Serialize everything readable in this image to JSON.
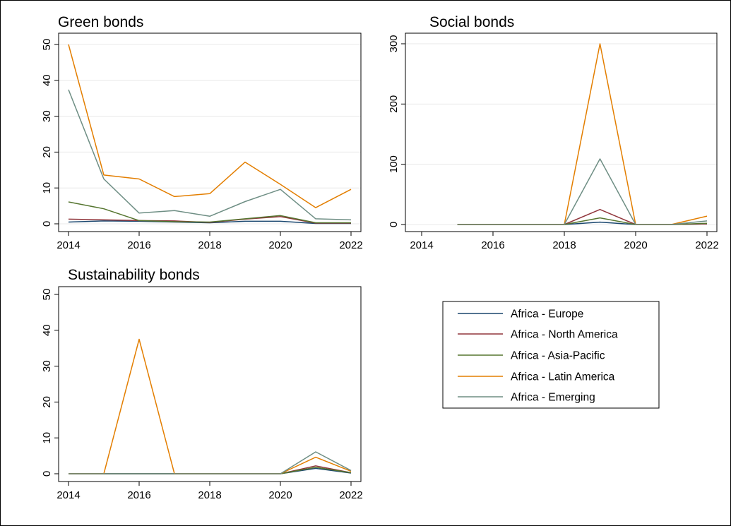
{
  "chart_data": [
    {
      "type": "line",
      "title": "Green bonds",
      "xlabel": "",
      "ylabel": "",
      "x": [
        2014,
        2015,
        2016,
        2017,
        2018,
        2019,
        2020,
        2021,
        2022
      ],
      "xticks": [
        "2014",
        "2016",
        "2018",
        "2020",
        "2022"
      ],
      "yticks": [
        "0",
        "10",
        "20",
        "30",
        "40",
        "50"
      ],
      "xlim": [
        2014,
        2022
      ],
      "ylim": [
        0,
        50
      ],
      "grid": true,
      "series": [
        {
          "name": "Africa - Europe",
          "values": [
            0.5,
            0.8,
            0.7,
            0.5,
            0.3,
            0.7,
            0.7,
            0.1,
            0.1
          ]
        },
        {
          "name": "Africa - North America",
          "values": [
            1.3,
            1.1,
            0.9,
            0.8,
            0.4,
            1.3,
            2.0,
            0.2,
            0.2
          ]
        },
        {
          "name": "Africa - Asia-Pacific",
          "values": [
            6.1,
            4.2,
            0.9,
            0.6,
            0.5,
            1.4,
            2.3,
            0.3,
            0.3
          ]
        },
        {
          "name": "Africa - Latin America",
          "values": [
            50,
            13.6,
            12.5,
            7.6,
            8.4,
            17.2,
            11.0,
            4.5,
            9.6
          ]
        },
        {
          "name": "Africa - Emerging",
          "values": [
            37.4,
            12.5,
            3.0,
            3.7,
            2.1,
            6.2,
            9.6,
            1.4,
            1.1
          ]
        }
      ]
    },
    {
      "type": "line",
      "title": "Social bonds",
      "xlabel": "",
      "ylabel": "",
      "x": [
        2015,
        2016,
        2017,
        2018,
        2019,
        2020,
        2021,
        2022
      ],
      "xticks": [
        "2014",
        "2016",
        "2018",
        "2020",
        "2022"
      ],
      "yticks": [
        "0",
        "100",
        "200",
        "300"
      ],
      "xlim": [
        2014,
        2022
      ],
      "ylim": [
        0,
        300
      ],
      "grid": true,
      "series": [
        {
          "name": "Africa - Europe",
          "values": [
            0,
            0,
            0,
            0,
            4,
            0,
            0,
            1
          ]
        },
        {
          "name": "Africa - North America",
          "values": [
            0,
            0,
            0,
            0,
            25,
            0,
            0,
            1
          ]
        },
        {
          "name": "Africa - Asia-Pacific",
          "values": [
            0,
            0,
            0,
            0,
            11,
            0,
            0,
            2
          ]
        },
        {
          "name": "Africa - Latin America",
          "values": [
            0,
            0,
            0,
            0,
            300,
            0,
            0,
            14
          ]
        },
        {
          "name": "Africa - Emerging",
          "values": [
            0,
            0,
            0,
            0,
            109,
            0,
            0,
            6
          ]
        }
      ]
    },
    {
      "type": "line",
      "title": "Sustainability bonds",
      "xlabel": "",
      "ylabel": "",
      "x": [
        2014,
        2015,
        2016,
        2017,
        2018,
        2019,
        2020,
        2021,
        2022
      ],
      "xticks": [
        "2014",
        "2016",
        "2018",
        "2020",
        "2022"
      ],
      "yticks": [
        "0",
        "10",
        "20",
        "30",
        "40",
        "50"
      ],
      "xlim": [
        2014,
        2022
      ],
      "ylim": [
        0,
        50
      ],
      "grid": false,
      "series": [
        {
          "name": "Africa - Europe",
          "values": [
            0,
            0,
            0,
            0,
            0,
            0,
            0,
            1.5,
            0.2
          ]
        },
        {
          "name": "Africa - North America",
          "values": [
            0,
            0,
            0,
            0,
            0,
            0,
            0,
            2.2,
            0.3
          ]
        },
        {
          "name": "Africa - Asia-Pacific",
          "values": [
            0,
            0,
            0,
            0,
            0,
            0,
            0,
            1.8,
            0.3
          ]
        },
        {
          "name": "Africa - Latin America",
          "values": [
            0,
            0,
            37.5,
            0,
            0,
            0,
            0,
            4.6,
            0.7
          ]
        },
        {
          "name": "Africa - Emerging",
          "values": [
            0,
            0,
            0,
            0,
            0,
            0,
            0,
            6.1,
            0.9
          ]
        }
      ]
    }
  ],
  "legend": {
    "position": "bottom-right",
    "entries": [
      {
        "label": "Africa - Europe",
        "color": "#1a476f"
      },
      {
        "label": "Africa - North America",
        "color": "#90353b"
      },
      {
        "label": "Africa - Asia-Pacific",
        "color": "#55752f"
      },
      {
        "label": "Africa - Latin America",
        "color": "#e37e00"
      },
      {
        "label": "Africa - Emerging",
        "color": "#6e8e84"
      }
    ]
  }
}
